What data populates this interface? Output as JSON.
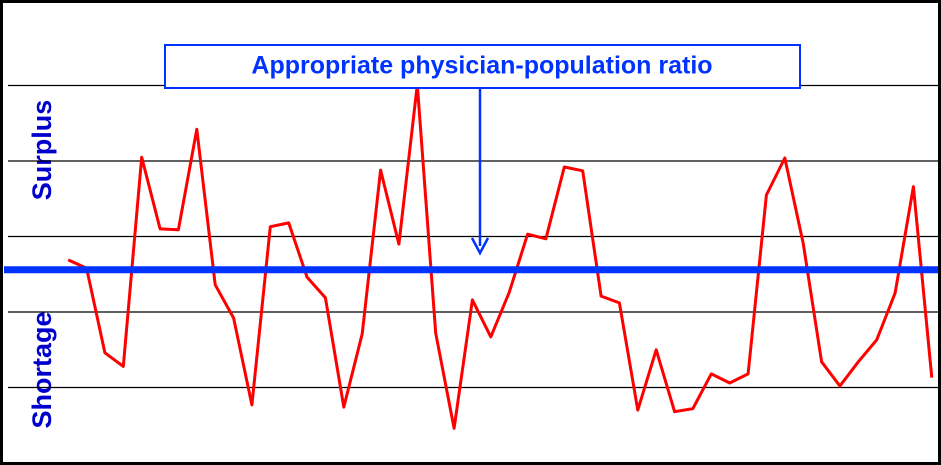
{
  "chart_data": {
    "type": "line",
    "annotation": "Appropriate physician-population ratio",
    "labels": {
      "upper": "Surplus",
      "lower": "Shortage"
    },
    "categories": [
      null,
      null,
      null,
      null,
      null,
      null,
      null,
      null,
      null,
      null,
      null,
      null,
      null,
      null,
      null,
      null,
      null,
      null,
      null,
      null,
      null,
      null,
      null,
      null,
      null,
      null,
      null,
      null,
      null,
      null,
      null,
      null,
      null,
      null,
      null,
      null,
      null,
      null,
      null,
      null,
      null,
      null,
      null,
      null,
      null,
      null,
      null,
      null
    ],
    "series": [
      {
        "color": "#ff0000",
        "values": [
          2.69,
          2.58,
          1.46,
          1.28,
          4.05,
          3.1,
          3.09,
          4.42,
          2.36,
          1.92,
          0.77,
          3.13,
          3.18,
          2.46,
          2.19,
          0.74,
          1.71,
          3.88,
          2.9,
          5.01,
          1.72,
          0.46,
          2.16,
          1.67,
          2.26,
          3.03,
          2.97,
          3.92,
          3.87,
          2.21,
          2.12,
          0.7,
          1.5,
          0.68,
          0.72,
          1.18,
          1.06,
          1.18,
          3.55,
          4.04,
          2.91,
          1.34,
          1.02,
          1.34,
          1.63,
          2.25,
          3.66,
          1.13
        ]
      }
    ],
    "reference_line": {
      "value": 2.56,
      "color": "#0033ff"
    },
    "ylim": [
      0,
      6
    ],
    "yticks": [
      1,
      2,
      3,
      4,
      5
    ],
    "grid": true
  }
}
